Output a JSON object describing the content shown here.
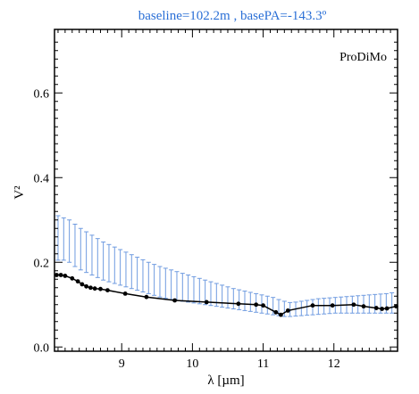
{
  "chart_data": {
    "type": "line",
    "title": "baseline=102.2m , basePA=-143.3º",
    "xlabel": "λ [µm]",
    "ylabel": "V²",
    "xlim": [
      8.05,
      12.9
    ],
    "ylim": [
      -0.01,
      0.75
    ],
    "x_ticks": [
      9,
      10,
      11,
      12
    ],
    "y_ticks": [
      0.0,
      0.2,
      0.4,
      0.6
    ],
    "x_tick_labels": [
      "9",
      "10",
      "11",
      "12"
    ],
    "y_tick_labels": [
      "0.0",
      "0.2",
      "0.4",
      "0.6"
    ],
    "annotation": "ProDiMo",
    "colors": {
      "title": "#2a6fd6",
      "errorbars": "#6f9be0",
      "model": "#000000"
    },
    "series": [
      {
        "kind": "model",
        "x": [
          8.08,
          8.14,
          8.2,
          8.3,
          8.38,
          8.44,
          8.5,
          8.56,
          8.62,
          8.7,
          8.8,
          9.05,
          9.35,
          9.75,
          10.2,
          10.65,
          10.9,
          11.0,
          11.18,
          11.25,
          11.35,
          11.7,
          11.98,
          12.28,
          12.42,
          12.6,
          12.68,
          12.75,
          12.88
        ],
        "y": [
          0.17,
          0.17,
          0.168,
          0.162,
          0.155,
          0.148,
          0.143,
          0.14,
          0.138,
          0.137,
          0.134,
          0.126,
          0.118,
          0.11,
          0.106,
          0.102,
          0.1,
          0.098,
          0.082,
          0.076,
          0.086,
          0.098,
          0.098,
          0.1,
          0.096,
          0.092,
          0.09,
          0.091,
          0.096
        ]
      },
      {
        "kind": "errorbars",
        "x": [
          8.1,
          8.18,
          8.26,
          8.34,
          8.42,
          8.5,
          8.58,
          8.66,
          8.74,
          8.82,
          8.9,
          8.98,
          9.06,
          9.14,
          9.22,
          9.3,
          9.38,
          9.46,
          9.54,
          9.62,
          9.7,
          9.78,
          9.86,
          9.94,
          10.02,
          10.1,
          10.18,
          10.26,
          10.34,
          10.42,
          10.5,
          10.58,
          10.66,
          10.74,
          10.82,
          10.9,
          10.98,
          11.06,
          11.14,
          11.22,
          11.3,
          11.38,
          11.46,
          11.54,
          11.62,
          11.7,
          11.78,
          11.86,
          11.94,
          12.02,
          12.1,
          12.18,
          12.26,
          12.34,
          12.42,
          12.5,
          12.58,
          12.66,
          12.74,
          12.82
        ],
        "upper": [
          0.31,
          0.305,
          0.3,
          0.29,
          0.28,
          0.272,
          0.264,
          0.256,
          0.248,
          0.242,
          0.236,
          0.23,
          0.224,
          0.218,
          0.212,
          0.206,
          0.2,
          0.195,
          0.19,
          0.186,
          0.182,
          0.178,
          0.174,
          0.17,
          0.166,
          0.162,
          0.158,
          0.154,
          0.15,
          0.146,
          0.142,
          0.138,
          0.135,
          0.132,
          0.129,
          0.126,
          0.123,
          0.12,
          0.117,
          0.112,
          0.108,
          0.105,
          0.106,
          0.108,
          0.11,
          0.112,
          0.114,
          0.115,
          0.116,
          0.117,
          0.118,
          0.119,
          0.12,
          0.121,
          0.122,
          0.123,
          0.124,
          0.125,
          0.126,
          0.128
        ],
        "lower": [
          0.205,
          0.205,
          0.2,
          0.19,
          0.182,
          0.176,
          0.17,
          0.164,
          0.158,
          0.154,
          0.15,
          0.146,
          0.142,
          0.138,
          0.134,
          0.13,
          0.126,
          0.122,
          0.118,
          0.115,
          0.112,
          0.11,
          0.108,
          0.106,
          0.104,
          0.102,
          0.1,
          0.098,
          0.096,
          0.094,
          0.092,
          0.09,
          0.088,
          0.086,
          0.084,
          0.082,
          0.08,
          0.078,
          0.076,
          0.074,
          0.072,
          0.072,
          0.073,
          0.074,
          0.075,
          0.076,
          0.077,
          0.078,
          0.079,
          0.08,
          0.08,
          0.08,
          0.08,
          0.08,
          0.08,
          0.08,
          0.08,
          0.08,
          0.08,
          0.08
        ]
      }
    ]
  }
}
